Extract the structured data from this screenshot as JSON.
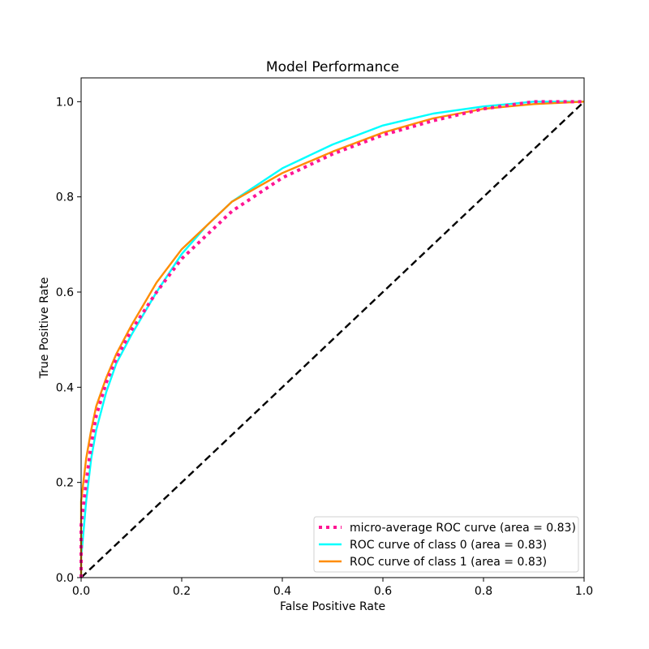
{
  "chart_data": {
    "type": "line",
    "title": "Model Performance",
    "xlabel": "False Positive Rate",
    "ylabel": "True Positive Rate",
    "xlim": [
      0.0,
      1.0
    ],
    "ylim": [
      0.0,
      1.05
    ],
    "x_ticks": [
      "0.0",
      "0.2",
      "0.4",
      "0.6",
      "0.8",
      "1.0"
    ],
    "y_ticks": [
      "0.0",
      "0.2",
      "0.4",
      "0.6",
      "0.8",
      "1.0"
    ],
    "grid": false,
    "legend_position": "lower-right",
    "series": [
      {
        "name": "micro-average ROC curve (area = 0.83)",
        "color": "#ff1493",
        "style": "dotted",
        "x": [
          0.0,
          0.0,
          0.01,
          0.02,
          0.03,
          0.05,
          0.07,
          0.1,
          0.15,
          0.2,
          0.25,
          0.3,
          0.4,
          0.5,
          0.6,
          0.7,
          0.8,
          0.9,
          1.0
        ],
        "y": [
          0.0,
          0.11,
          0.2,
          0.28,
          0.34,
          0.41,
          0.46,
          0.52,
          0.6,
          0.67,
          0.72,
          0.77,
          0.84,
          0.89,
          0.93,
          0.96,
          0.985,
          1.0,
          1.0
        ]
      },
      {
        "name": "ROC curve of class 0 (area = 0.83)",
        "color": "#00ffff",
        "style": "solid",
        "x": [
          0.0,
          0.0,
          0.01,
          0.02,
          0.03,
          0.05,
          0.07,
          0.1,
          0.15,
          0.2,
          0.25,
          0.3,
          0.4,
          0.5,
          0.6,
          0.7,
          0.8,
          0.9,
          1.0
        ],
        "y": [
          0.0,
          0.04,
          0.16,
          0.25,
          0.31,
          0.39,
          0.45,
          0.51,
          0.6,
          0.68,
          0.74,
          0.79,
          0.86,
          0.91,
          0.95,
          0.975,
          0.99,
          1.0,
          1.0
        ]
      },
      {
        "name": "ROC curve of class 1 (area = 0.83)",
        "color": "#ff8c00",
        "style": "solid",
        "x": [
          0.0,
          0.0,
          0.01,
          0.02,
          0.03,
          0.05,
          0.07,
          0.1,
          0.15,
          0.2,
          0.25,
          0.3,
          0.4,
          0.5,
          0.6,
          0.7,
          0.8,
          0.9,
          1.0
        ],
        "y": [
          0.0,
          0.16,
          0.25,
          0.31,
          0.36,
          0.42,
          0.47,
          0.53,
          0.62,
          0.69,
          0.74,
          0.79,
          0.85,
          0.895,
          0.935,
          0.965,
          0.985,
          0.995,
          1.0
        ]
      }
    ],
    "chance_line": {
      "color": "#000000",
      "style": "dashed",
      "x": [
        0.0,
        1.0
      ],
      "y": [
        0.0,
        1.0
      ]
    }
  }
}
